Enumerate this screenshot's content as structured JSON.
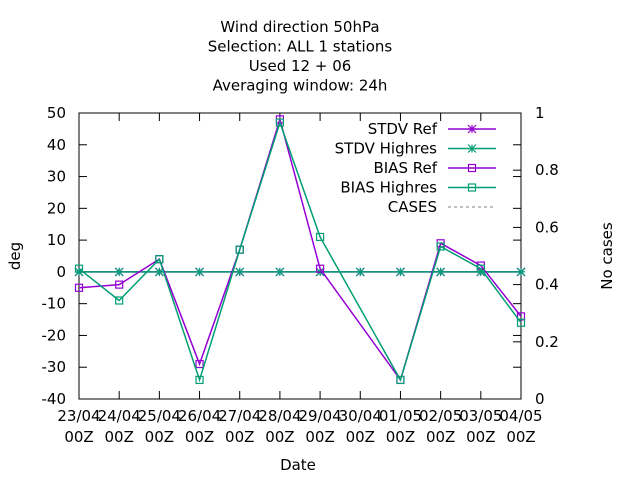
{
  "chart_data": {
    "type": "line",
    "title_lines": [
      "Wind direction 50hPa",
      "Selection: ALL      1 stations",
      "Used  12 + 06",
      "Averaging window: 24h"
    ],
    "xlabel": "Date",
    "ylabel": "deg",
    "y2label": "No cases",
    "ylim": [
      -40,
      50
    ],
    "y2lim": [
      0,
      1
    ],
    "yticks": [
      -40,
      -30,
      -20,
      -10,
      0,
      10,
      20,
      30,
      40,
      50
    ],
    "y2ticks": [
      0,
      0.2,
      0.4,
      0.6,
      0.8,
      1
    ],
    "categories": [
      [
        "23/04",
        "00Z"
      ],
      [
        "24/04",
        "00Z"
      ],
      [
        "25/04",
        "00Z"
      ],
      [
        "26/04",
        "00Z"
      ],
      [
        "27/04",
        "00Z"
      ],
      [
        "28/04",
        "00Z"
      ],
      [
        "29/04",
        "00Z"
      ],
      [
        "30/04",
        "00Z"
      ],
      [
        "01/05",
        "00Z"
      ],
      [
        "02/05",
        "00Z"
      ],
      [
        "03/05",
        "00Z"
      ],
      [
        "04/05",
        "00Z"
      ]
    ],
    "grid": false,
    "legend_position": "top-right",
    "series": [
      {
        "name": "STDV Ref",
        "color": "#9400d3",
        "marker": "star",
        "dash": false,
        "points": [
          [
            0,
            0
          ],
          [
            1,
            0
          ],
          [
            2,
            0
          ],
          [
            3,
            0
          ],
          [
            4,
            0
          ],
          [
            5,
            0
          ],
          [
            6,
            0
          ],
          [
            7,
            0
          ],
          [
            8,
            0
          ],
          [
            9,
            0
          ],
          [
            10,
            0
          ],
          [
            11,
            0
          ]
        ]
      },
      {
        "name": "STDV Highres",
        "color": "#009e73",
        "marker": "star",
        "dash": false,
        "points": [
          [
            0,
            0
          ],
          [
            1,
            0
          ],
          [
            2,
            0
          ],
          [
            3,
            0
          ],
          [
            4,
            0
          ],
          [
            5,
            0
          ],
          [
            6,
            0
          ],
          [
            7,
            0
          ],
          [
            8,
            0
          ],
          [
            9,
            0
          ],
          [
            10,
            0
          ],
          [
            11,
            0
          ]
        ]
      },
      {
        "name": "BIAS Ref",
        "color": "#9400d3",
        "marker": "square",
        "dash": false,
        "points": [
          [
            0,
            -5
          ],
          [
            1,
            -4
          ],
          [
            2,
            4
          ],
          [
            3,
            -29
          ],
          [
            4,
            7
          ],
          [
            5,
            48
          ],
          [
            6,
            1
          ],
          [
            8,
            -34
          ],
          [
            9,
            9
          ],
          [
            10,
            2
          ],
          [
            11,
            -14
          ]
        ]
      },
      {
        "name": "BIAS Highres",
        "color": "#009e73",
        "marker": "square",
        "dash": false,
        "points": [
          [
            0,
            1
          ],
          [
            1,
            -9
          ],
          [
            2,
            4
          ],
          [
            3,
            -34
          ],
          [
            4,
            7
          ],
          [
            5,
            47
          ],
          [
            6,
            11
          ],
          [
            8,
            -34
          ],
          [
            9,
            8
          ],
          [
            10,
            1
          ],
          [
            11,
            -16
          ]
        ]
      },
      {
        "name": "CASES",
        "color": "#808080",
        "marker": "none",
        "dash": true,
        "points": []
      }
    ]
  }
}
